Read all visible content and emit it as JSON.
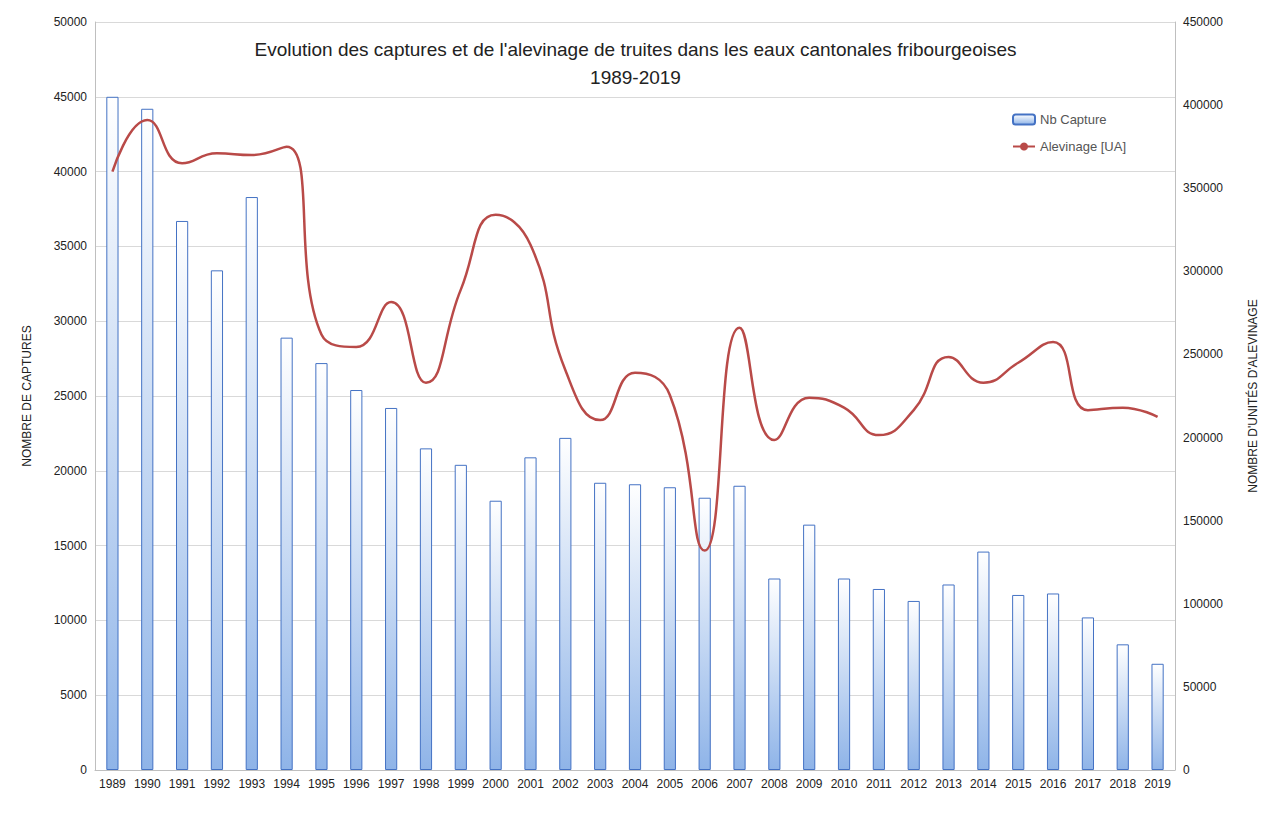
{
  "chart_data": {
    "type": "bar",
    "title": "Evolution des captures et de l'alevinage de truites dans les eaux cantonales fribourgeoises\n1989-2019",
    "y_label": "NOMBRE DE CAPTURES",
    "y2_label": "NOMBRE D'UNITÉS D'ALEVINAGE",
    "categories": [
      "1989",
      "1990",
      "1991",
      "1992",
      "1993",
      "1994",
      "1995",
      "1996",
      "1997",
      "1998",
      "1999",
      "2000",
      "2001",
      "2002",
      "2003",
      "2004",
      "2005",
      "2006",
      "2007",
      "2008",
      "2009",
      "2010",
      "2011",
      "2012",
      "2013",
      "2014",
      "2015",
      "2016",
      "2017",
      "2018",
      "2019"
    ],
    "series": [
      {
        "name": "Nb Capture",
        "type": "bar",
        "color": "#8fb4e8",
        "values": [
          45000,
          44200,
          36700,
          33400,
          38300,
          28900,
          27200,
          25400,
          24200,
          21500,
          20400,
          18000,
          20900,
          22200,
          19200,
          19100,
          18900,
          18200,
          19000,
          12800,
          16400,
          12800,
          12100,
          11300,
          12400,
          14600,
          11700,
          11800,
          10200,
          8400,
          7100
        ]
      },
      {
        "name": "Alevinage [UA]",
        "type": "line",
        "axis": "y2",
        "color": "#b94a48",
        "line_style": "smooth",
        "marker": "none",
        "values": [
          360000,
          391000,
          365000,
          371000,
          370000,
          375000,
          262000,
          254500,
          281500,
          233000,
          289000,
          334000,
          316000,
          240600,
          210500,
          239000,
          225600,
          132000,
          266000,
          198500,
          224000,
          218000,
          201500,
          216500,
          248500,
          233000,
          245000,
          257500,
          216500,
          218000,
          212400
        ]
      }
    ],
    "ylim": [
      0,
      50000
    ],
    "yticks": [
      0,
      5000,
      10000,
      15000,
      20000,
      25000,
      30000,
      35000,
      40000,
      45000,
      50000
    ],
    "y2lim": [
      0,
      450000
    ],
    "y2ticks": [
      0,
      50000,
      100000,
      150000,
      200000,
      250000,
      300000,
      350000,
      400000,
      450000
    ],
    "grid": true,
    "legend": "top-right"
  }
}
